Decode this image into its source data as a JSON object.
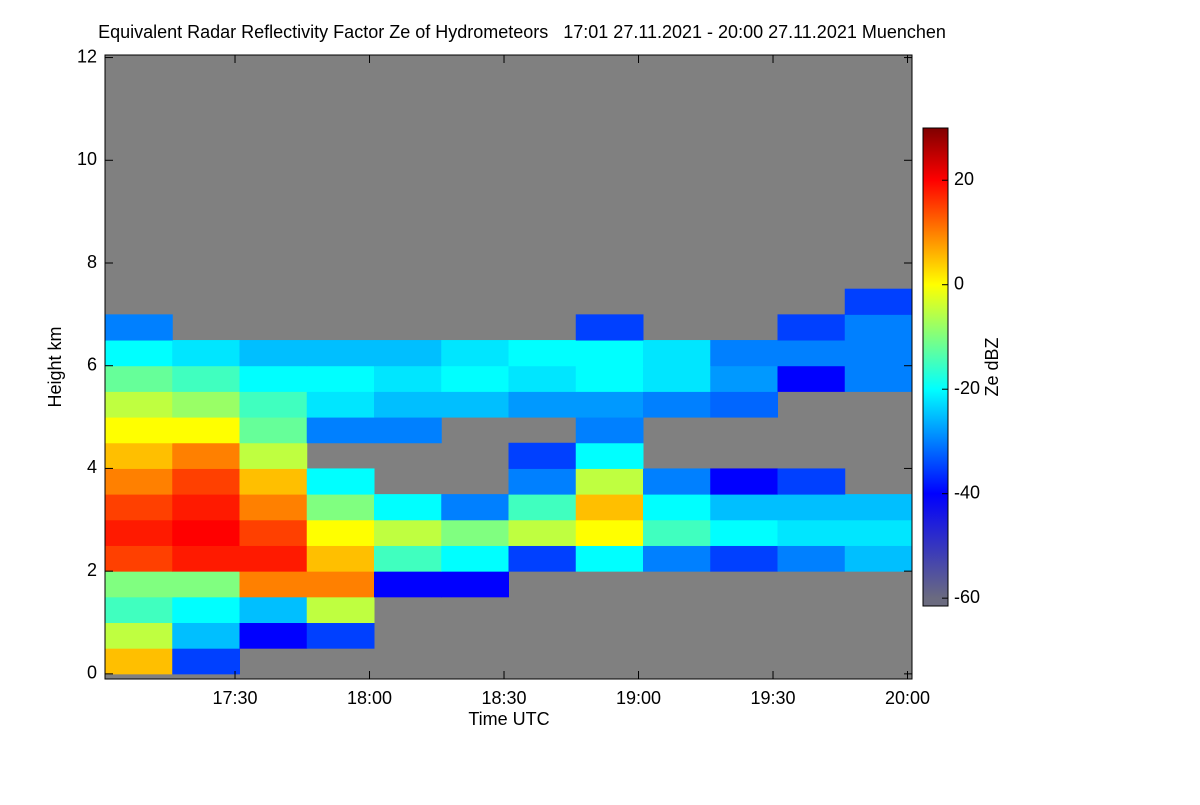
{
  "chart_data": {
    "type": "heatmap",
    "title": "Equivalent Radar Reflectivity Factor Ze of Hydrometeors   17:01 27.11.2021 - 20:00 27.11.2021 Muenchen",
    "x_label": "Time UTC",
    "y_label": "Height km",
    "colorbar_label": "Ze dBZ",
    "missing_color": "#808080",
    "xlim": [
      1021,
      1201
    ],
    "ylim": [
      -0.1,
      12.05
    ],
    "clim": [
      -61.5,
      30
    ],
    "xticks": [
      {
        "value": 1050,
        "label": "17:30"
      },
      {
        "value": 1080,
        "label": "18:00"
      },
      {
        "value": 1110,
        "label": "18:30"
      },
      {
        "value": 1140,
        "label": "19:00"
      },
      {
        "value": 1170,
        "label": "19:30"
      },
      {
        "value": 1200,
        "label": "20:00"
      }
    ],
    "yticks": [
      0,
      2,
      4,
      6,
      8,
      10,
      12
    ],
    "cticks": [
      -60,
      -40,
      -20,
      0,
      20
    ],
    "colorscale": [
      [
        -60,
        "#6b6b80"
      ],
      [
        -40,
        "#0000ff"
      ],
      [
        -20,
        "#00ffff"
      ],
      [
        0,
        "#ffff00"
      ],
      [
        20,
        "#ff0000"
      ],
      [
        30,
        "#800000"
      ]
    ],
    "x": [
      1028.5,
      1043.5,
      1058.5,
      1073.5,
      1088.5,
      1103.5,
      1118.5,
      1133.5,
      1148.5,
      1163.5,
      1178.5,
      1193.5
    ],
    "y": [
      0.25,
      0.75,
      1.25,
      1.75,
      2.25,
      2.75,
      3.25,
      3.75,
      4.25,
      4.75,
      5.25,
      5.75,
      6.25,
      6.75,
      7.25
    ],
    "z": [
      [
        5,
        -35,
        null,
        null,
        null,
        null,
        null,
        null,
        null,
        null,
        null,
        null
      ],
      [
        -5,
        -25,
        -40,
        -35,
        null,
        null,
        null,
        null,
        null,
        null,
        null,
        null
      ],
      [
        -15,
        -20,
        -25,
        -5,
        null,
        null,
        null,
        null,
        null,
        null,
        null,
        null
      ],
      [
        -10,
        -10,
        10,
        10,
        -40,
        -40,
        null,
        null,
        null,
        null,
        null,
        null
      ],
      [
        15,
        18,
        18,
        5,
        -15,
        -20,
        -35,
        -20,
        -30,
        -35,
        -30,
        -25
      ],
      [
        18,
        20,
        15,
        0,
        -5,
        -10,
        -5,
        0,
        -15,
        -20,
        -22,
        -22
      ],
      [
        15,
        18,
        10,
        -10,
        -20,
        -30,
        -15,
        5,
        -20,
        -25,
        -25,
        -25
      ],
      [
        10,
        15,
        5,
        -20,
        null,
        null,
        -30,
        -5,
        -30,
        -40,
        -35,
        null
      ],
      [
        5,
        10,
        -5,
        null,
        null,
        null,
        -35,
        -20,
        null,
        null,
        null,
        null
      ],
      [
        0,
        0,
        -12,
        -30,
        -30,
        null,
        null,
        -30,
        null,
        null,
        null,
        null
      ],
      [
        -5,
        -8,
        -15,
        -22,
        -25,
        -25,
        -28,
        -28,
        -30,
        -32,
        null,
        null
      ],
      [
        -12,
        -15,
        -20,
        -20,
        -22,
        -20,
        -22,
        -20,
        -22,
        -28,
        -40,
        -30
      ],
      [
        -20,
        -22,
        -25,
        -25,
        -25,
        -22,
        -20,
        -20,
        -22,
        -30,
        -30,
        -30
      ],
      [
        -30,
        null,
        null,
        null,
        null,
        null,
        null,
        -35,
        null,
        null,
        -35,
        -30
      ],
      [
        null,
        null,
        null,
        null,
        null,
        null,
        null,
        null,
        null,
        null,
        null,
        -35
      ]
    ]
  }
}
